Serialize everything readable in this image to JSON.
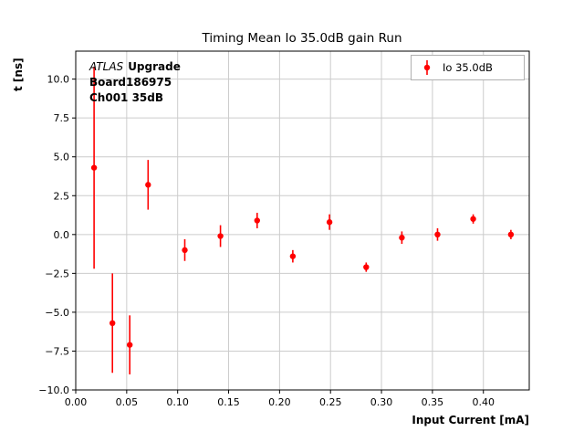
{
  "title": "Timing Mean Io 35.0dB gain Run",
  "annotation": {
    "line1_italic": "ATLAS",
    "line1_bold": "Upgrade",
    "line2": "Board186975",
    "line3": "Ch001 35dB"
  },
  "legend": {
    "label": "Io 35.0dB"
  },
  "colors": {
    "series": "#ff0000",
    "grid": "#cccccc",
    "spine": "#000000",
    "legend_border": "#b0b0b0"
  },
  "chart_data": {
    "type": "scatter",
    "title": "Timing Mean Io 35.0dB gain Run",
    "xlabel": "Input Current [mA]",
    "ylabel": "t [ns]",
    "xlim": [
      0.0,
      0.445
    ],
    "ylim": [
      -10.0,
      11.8
    ],
    "xticks": [
      0.0,
      0.05,
      0.1,
      0.15,
      0.2,
      0.25,
      0.3,
      0.35,
      0.4
    ],
    "yticks": [
      -10.0,
      -7.5,
      -5.0,
      -2.5,
      0.0,
      2.5,
      5.0,
      7.5,
      10.0
    ],
    "grid": true,
    "legend_position": "upper right",
    "series": [
      {
        "name": "Io 35.0dB",
        "color": "#ff0000",
        "x": [
          0.018,
          0.036,
          0.053,
          0.071,
          0.107,
          0.142,
          0.178,
          0.213,
          0.249,
          0.285,
          0.32,
          0.355,
          0.39,
          0.427
        ],
        "y": [
          4.3,
          -5.7,
          -7.1,
          3.2,
          -1.0,
          -0.1,
          0.9,
          -1.4,
          0.8,
          -2.1,
          -0.2,
          0.0,
          1.0,
          0.0
        ],
        "yerr": [
          6.5,
          3.2,
          1.9,
          1.6,
          0.7,
          0.7,
          0.5,
          0.4,
          0.5,
          0.3,
          0.4,
          0.4,
          0.3,
          0.3
        ]
      }
    ]
  }
}
